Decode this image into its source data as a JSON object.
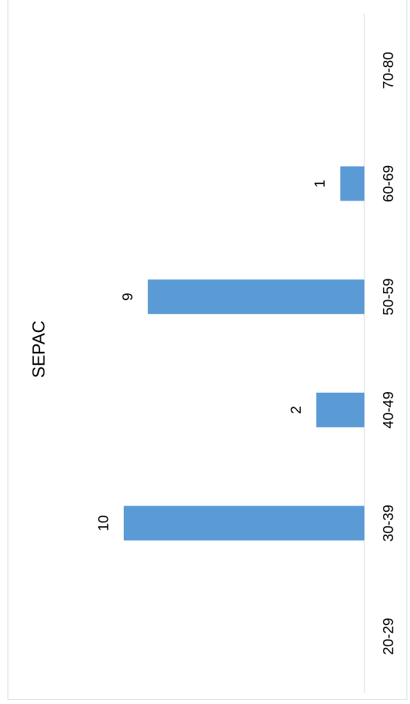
{
  "chart_data": {
    "type": "bar",
    "orientation": "horizontal",
    "title": "SEPAC",
    "categories": [
      "20-29",
      "30-39",
      "40-49",
      "50-59",
      "60-69",
      "70-80"
    ],
    "values": [
      0,
      10,
      2,
      9,
      1,
      0
    ],
    "data_labels": [
      "",
      "10",
      "2",
      "9",
      "1",
      ""
    ],
    "xlim": [
      0,
      10.5
    ],
    "grid": false,
    "legend": "none",
    "bar_color": "#5b9bd5",
    "axis_color": "#d9d9d9"
  }
}
